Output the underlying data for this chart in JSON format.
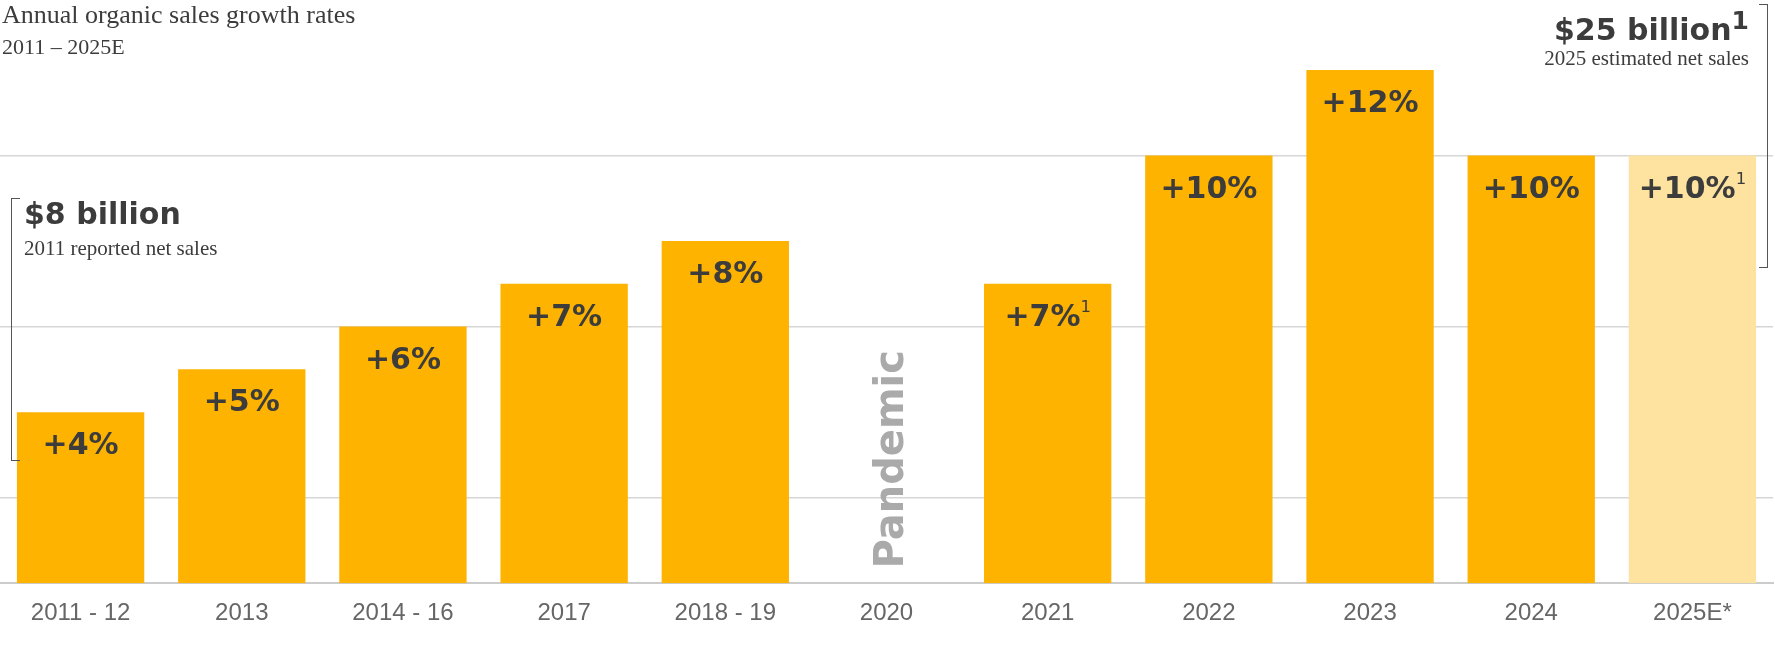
{
  "chart_data": {
    "type": "bar",
    "title": "Annual organic sales growth rates",
    "subtitle": "2011 – 2025E",
    "categories": [
      "2011 - 12",
      "2013",
      "2014 - 16",
      "2017",
      "2018 - 19",
      "2020",
      "2021",
      "2022",
      "2023",
      "2024",
      "2025E*"
    ],
    "values": [
      4,
      5,
      6,
      7,
      8,
      null,
      7,
      10,
      12,
      10,
      10
    ],
    "value_labels": [
      "+4%",
      "+5%",
      "+6%",
      "+7%",
      "+8%",
      null,
      "+7%$^{1}$",
      "+10%",
      "+12%",
      "+10%",
      "+10%$^{1}$"
    ],
    "colors": [
      "#fdb300",
      "#fdb300",
      "#fdb300",
      "#fdb300",
      "#fdb300",
      "#fdb300",
      "#fdb300",
      "#fdb300",
      "#fdb300",
      "#fdb300",
      "#fde2a0"
    ],
    "yticks": [
      {
        "value": 2,
        "label": null
      },
      {
        "value": 6,
        "label": null
      },
      {
        "value": 10,
        "label": null
      }
    ],
    "grid": "y",
    "tick_labels": "x",
    "legend": false,
    "annotations": [
      "Pandemic",
      "$8 billion",
      "2011 reported net sales",
      "$25 billion$^{1}$",
      "2025 estimated net sales"
    ]
  }
}
